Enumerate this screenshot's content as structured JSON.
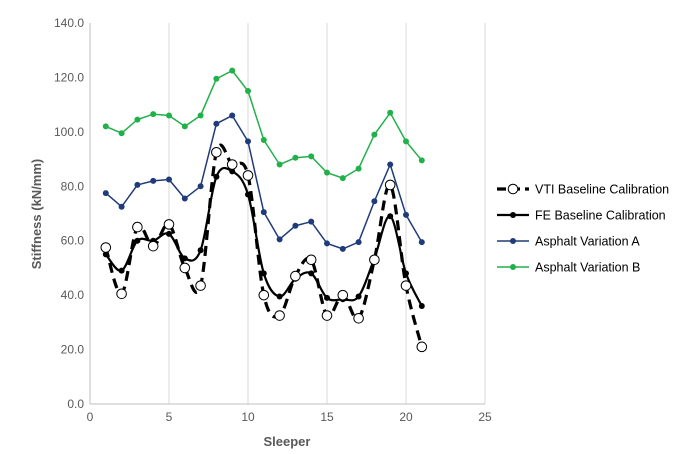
{
  "chart_data": {
    "type": "scatter",
    "title": "",
    "xlabel": "Sleeper",
    "ylabel": "Stiffness (kN/mm)",
    "xlim": [
      0,
      25
    ],
    "ylim": [
      0,
      140
    ],
    "x_ticks": [
      "0",
      "5",
      "10",
      "15",
      "20",
      "25"
    ],
    "y_ticks": [
      "0.0",
      "20.0",
      "40.0",
      "60.0",
      "80.0",
      "100.0",
      "120.0",
      "140.0"
    ],
    "grid": "vertical",
    "legend_position": "right",
    "x": [
      1,
      2,
      3,
      4,
      5,
      6,
      7,
      8,
      9,
      10,
      11,
      12,
      13,
      14,
      15,
      16,
      17,
      18,
      19,
      20,
      21
    ],
    "series": [
      {
        "name": "VTI Baseline Calibration",
        "color": "#000000",
        "style": "dashed-smooth-open-markers",
        "values": [
          57.5,
          40.5,
          65,
          58,
          66,
          50,
          43.5,
          92.5,
          88,
          84,
          40,
          32.5,
          47,
          53,
          32.5,
          40,
          31.5,
          53,
          80.5,
          43.5,
          21
        ]
      },
      {
        "name": "FE Baseline Calibration",
        "color": "#000000",
        "style": "solid-smooth-filled-markers",
        "values": [
          55,
          49,
          60,
          60,
          62.5,
          53.5,
          56.5,
          83.5,
          85.5,
          77,
          48,
          39.5,
          46,
          48,
          39,
          38.5,
          39.5,
          53.5,
          69,
          48,
          36
        ]
      },
      {
        "name": "Asphalt Variation A",
        "color": "#1f3b7a",
        "style": "solid-filled-markers",
        "values": [
          77.5,
          72.5,
          80.5,
          82,
          82.5,
          75.5,
          80,
          103,
          106,
          96.5,
          70.5,
          60.5,
          65.5,
          67,
          59,
          57,
          59.5,
          74.5,
          88,
          69.5,
          59.5
        ]
      },
      {
        "name": "Asphalt Variation B",
        "color": "#22b04b",
        "style": "solid-filled-markers",
        "values": [
          102,
          99.5,
          104.5,
          106.5,
          106,
          102,
          106,
          119.5,
          122.5,
          115,
          97,
          88,
          90.5,
          91,
          85,
          83,
          86.5,
          99,
          107,
          96.5,
          89.5
        ]
      }
    ]
  }
}
